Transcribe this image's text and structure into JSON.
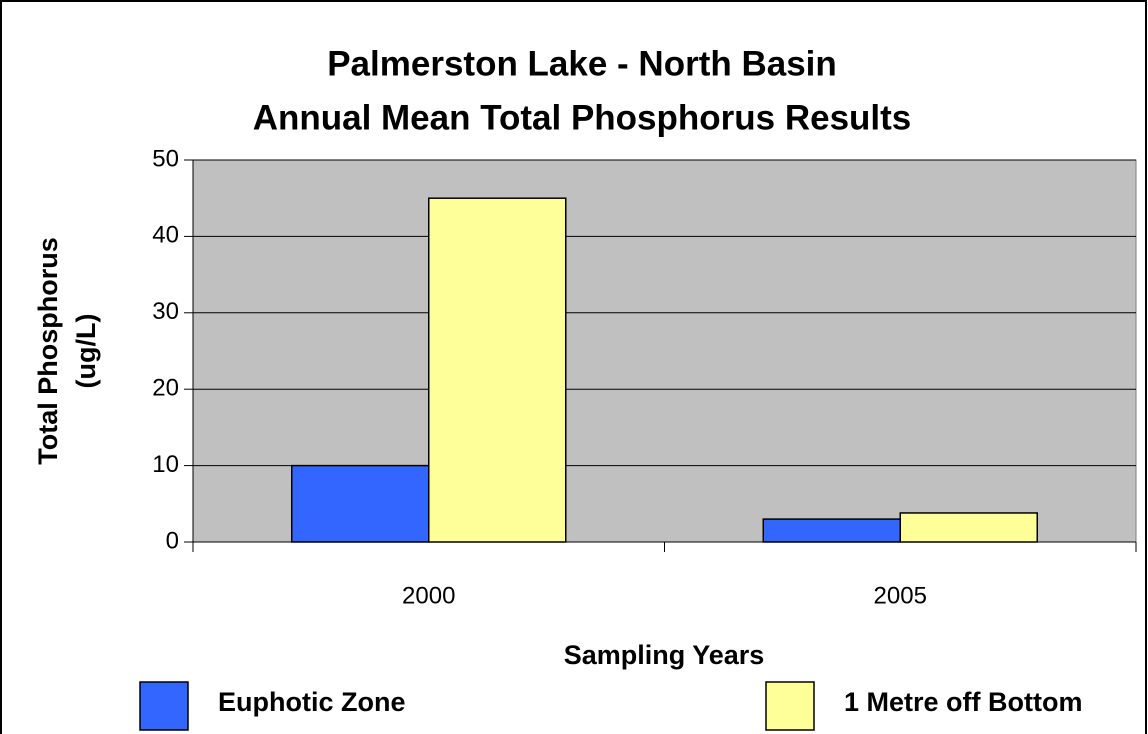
{
  "chart_data": {
    "type": "bar",
    "title": [
      "Palmerston Lake - North Basin",
      "Annual Mean Total Phosphorus Results"
    ],
    "y_label": [
      "Total Phosphorus",
      "(ug/L)"
    ],
    "x_label": "Sampling Years",
    "categories": [
      "2000",
      "2005"
    ],
    "series": [
      {
        "name": "Euphotic Zone",
        "color": "#3366ff",
        "values": [
          10,
          3
        ]
      },
      {
        "name": "1 Metre off Bottom",
        "color": "#ffff99",
        "values": [
          45,
          3.8
        ]
      }
    ],
    "ylim": [
      0,
      50
    ],
    "yticks": [
      0,
      10,
      20,
      30,
      40,
      50
    ],
    "grid": true
  }
}
